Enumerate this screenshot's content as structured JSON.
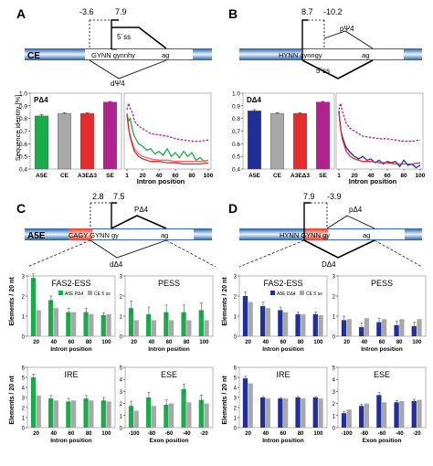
{
  "colors": {
    "green": "#1aab4a",
    "gray": "#a8a8a8",
    "red": "#e62d2d",
    "magenta": "#b0238c",
    "blue": "#1f2f97",
    "pink": "#c43cb0",
    "salmon": "#f26d6d",
    "exon": "#2a78bf"
  },
  "panels": {
    "A": {
      "letter": "A",
      "exon_label": "CE",
      "splice_text": "GYNN gynnhy",
      "ag": "ag",
      "num_left": "-3.6",
      "num_right": "7.9",
      "ss5": "5´ss",
      "dpsi": "dΨ4",
      "bar_title": "PΔ4",
      "ylabel": "Sequence identity [%]",
      "xlabel": "Intron position"
    },
    "B": {
      "letter": "B",
      "splice_text": "HYNN gynngy",
      "ag": "ag",
      "num_left": "8.7",
      "num_right": "-10.2",
      "ppsi": "pΨ4",
      "ss5": "5´ss",
      "bar_title": "DΔ4",
      "xlabel": "Intron position"
    },
    "C": {
      "letter": "C",
      "exon_label": "A5E",
      "splice_text": "CAGY GYNN gy",
      "ag": "ag",
      "num_left": "2.8",
      "num_right": "7.5",
      "pdelta": "PΔ4",
      "ddelta": "dΔ4",
      "ylabel": "Elements / 20 nt"
    },
    "D": {
      "letter": "D",
      "splice_text": "HYNN GYNN gy",
      "ag": "ag",
      "num_left": "7.9",
      "num_right": "-3.9",
      "pdelta": "pΔ4",
      "ddelta": "DΔ4",
      "ylabel": "Elements / 20 nt"
    }
  },
  "chart_data": [
    {
      "id": "A-bar",
      "type": "bar",
      "title": "PΔ4",
      "ylabel": "Sequence identity [%]",
      "categories": [
        "A5E",
        "CE",
        "A3EΔ3",
        "SE"
      ],
      "values": [
        0.82,
        0.84,
        0.84,
        0.93
      ],
      "errors": [
        0.01,
        0.005,
        0.005,
        0.005
      ],
      "colors": [
        "green",
        "gray",
        "red",
        "magenta"
      ],
      "ylim": [
        0.4,
        1.0
      ],
      "yticks": [
        0.4,
        0.5,
        0.6,
        0.7,
        0.8,
        0.9,
        1.0
      ]
    },
    {
      "id": "A-line",
      "type": "line",
      "xlabel": "Intron position",
      "xticks": [
        1,
        20,
        40,
        60,
        80,
        100
      ],
      "ylim": [
        0.4,
        1.0
      ],
      "series": [
        {
          "color": "magenta",
          "dashed": true,
          "x": [
            1,
            3,
            5,
            8,
            10,
            15,
            20,
            25,
            30,
            40,
            50,
            60,
            70,
            80,
            90,
            100
          ],
          "y": [
            0.87,
            0.92,
            0.88,
            0.84,
            0.78,
            0.74,
            0.72,
            0.7,
            0.68,
            0.67,
            0.66,
            0.64,
            0.63,
            0.62,
            0.62,
            0.63
          ]
        },
        {
          "color": "green",
          "dashed": false,
          "x": [
            1,
            3,
            5,
            8,
            10,
            15,
            20,
            25,
            30,
            35,
            40,
            45,
            50,
            55,
            60,
            65,
            70,
            75,
            80,
            85,
            90,
            95,
            100
          ],
          "y": [
            0.84,
            0.78,
            0.8,
            0.7,
            0.66,
            0.6,
            0.58,
            0.55,
            0.56,
            0.52,
            0.54,
            0.51,
            0.56,
            0.5,
            0.53,
            0.49,
            0.54,
            0.5,
            0.53,
            0.47,
            0.49,
            0.46,
            0.47
          ]
        },
        {
          "color": "salmon",
          "dashed": false,
          "x": [
            1,
            3,
            5,
            8,
            10,
            15,
            20,
            25,
            30,
            40,
            50,
            60,
            70,
            80,
            90,
            100
          ],
          "y": [
            0.84,
            0.73,
            0.66,
            0.6,
            0.56,
            0.52,
            0.5,
            0.49,
            0.48,
            0.47,
            0.47,
            0.46,
            0.46,
            0.46,
            0.46,
            0.47
          ]
        },
        {
          "color": "red",
          "dashed": false,
          "x": [
            1,
            3,
            5,
            8,
            10,
            15,
            20,
            25,
            30,
            40,
            50,
            60,
            70,
            80,
            90,
            100
          ],
          "y": [
            0.83,
            0.72,
            0.65,
            0.58,
            0.54,
            0.5,
            0.48,
            0.47,
            0.46,
            0.46,
            0.45,
            0.45,
            0.44,
            0.44,
            0.44,
            0.45
          ]
        }
      ]
    },
    {
      "id": "B-bar",
      "type": "bar",
      "title": "DΔ4",
      "categories": [
        "A5E",
        "CE",
        "A3EΔ3",
        "SE"
      ],
      "values": [
        0.86,
        0.84,
        0.84,
        0.93
      ],
      "errors": [
        0.01,
        0.005,
        0.005,
        0.005
      ],
      "colors": [
        "blue",
        "gray",
        "red",
        "magenta"
      ],
      "ylim": [
        0.4,
        1.0
      ],
      "yticks": [
        0.4,
        0.5,
        0.6,
        0.7,
        0.8,
        0.9,
        1.0
      ]
    },
    {
      "id": "B-line",
      "type": "line",
      "xlabel": "Intron position",
      "xticks": [
        1,
        20,
        40,
        60,
        80,
        100
      ],
      "ylim": [
        0.4,
        1.0
      ],
      "series": [
        {
          "color": "magenta",
          "dashed": true,
          "x": [
            1,
            3,
            5,
            8,
            10,
            15,
            20,
            25,
            30,
            40,
            50,
            60,
            70,
            80,
            90,
            100
          ],
          "y": [
            0.87,
            0.92,
            0.86,
            0.8,
            0.76,
            0.72,
            0.7,
            0.68,
            0.66,
            0.65,
            0.64,
            0.64,
            0.63,
            0.62,
            0.62,
            0.63
          ]
        },
        {
          "color": "blue",
          "dashed": false,
          "x": [
            1,
            3,
            5,
            8,
            10,
            15,
            20,
            25,
            30,
            35,
            40,
            45,
            50,
            55,
            60,
            65,
            70,
            75,
            80,
            85,
            90,
            95,
            100
          ],
          "y": [
            0.86,
            0.72,
            0.66,
            0.6,
            0.57,
            0.53,
            0.5,
            0.48,
            0.5,
            0.47,
            0.48,
            0.45,
            0.47,
            0.44,
            0.46,
            0.45,
            0.46,
            0.42,
            0.47,
            0.43,
            0.44,
            0.41,
            0.43
          ]
        },
        {
          "color": "red",
          "dashed": false,
          "x": [
            1,
            3,
            5,
            8,
            10,
            15,
            20,
            25,
            30,
            40,
            50,
            60,
            70,
            80,
            90,
            100
          ],
          "y": [
            0.84,
            0.72,
            0.64,
            0.58,
            0.54,
            0.5,
            0.48,
            0.47,
            0.46,
            0.46,
            0.45,
            0.45,
            0.44,
            0.44,
            0.44,
            0.45
          ]
        }
      ]
    },
    {
      "id": "C1",
      "type": "bar",
      "title": "FAS2-ESS",
      "legend": [
        "A5E PΔ4",
        "CE 5´ss"
      ],
      "xlabel": "Intron position",
      "categories": [
        "20",
        "40",
        "60",
        "80",
        "100"
      ],
      "series": [
        {
          "color": "green",
          "values": [
            2.9,
            1.8,
            1.2,
            1.2,
            1.05
          ]
        },
        {
          "color": "gray",
          "values": [
            1.3,
            1.4,
            1.2,
            1.1,
            1.1
          ]
        }
      ],
      "errors": [
        0.2,
        0.2,
        0.2,
        0.2,
        0.1
      ],
      "ylim": [
        0,
        3
      ],
      "yticks": [
        0,
        1,
        2,
        3
      ]
    },
    {
      "id": "C2",
      "type": "bar",
      "title": "PESS",
      "xlabel": "Intron position",
      "categories": [
        "20",
        "40",
        "60",
        "80",
        "100"
      ],
      "series": [
        {
          "color": "green",
          "values": [
            1.4,
            1.1,
            1.2,
            1.2,
            1.3
          ]
        },
        {
          "color": "gray",
          "values": [
            0.8,
            0.8,
            0.8,
            0.8,
            0.8
          ]
        }
      ],
      "errors": [
        0.35,
        0.35,
        0.35,
        0.35,
        0.35
      ],
      "ylim": [
        0,
        3
      ],
      "yticks": [
        0,
        1,
        2,
        3
      ]
    },
    {
      "id": "C3",
      "type": "bar",
      "title": "IRE",
      "xlabel": "Intron position",
      "categories": [
        "20",
        "40",
        "60",
        "80",
        "100"
      ],
      "series": [
        {
          "color": "green",
          "values": [
            5.0,
            2.9,
            2.6,
            2.9,
            2.7
          ]
        },
        {
          "color": "gray",
          "values": [
            3.2,
            2.7,
            2.7,
            2.7,
            2.6
          ]
        }
      ],
      "errors": [
        0.3,
        0.3,
        0.3,
        0.3,
        0.3
      ],
      "ylim": [
        0,
        6
      ],
      "yticks": [
        0,
        1,
        2,
        3,
        4,
        5,
        6
      ]
    },
    {
      "id": "C4",
      "type": "bar",
      "title": "ESE",
      "xlabel": "Exon position",
      "categories": [
        "-100",
        "-80",
        "-60",
        "-40",
        "-20"
      ],
      "series": [
        {
          "color": "green",
          "values": [
            1.8,
            2.5,
            1.9,
            3.2,
            2.3
          ]
        },
        {
          "color": "gray",
          "values": [
            1.4,
            1.8,
            2.0,
            2.1,
            2.0
          ]
        }
      ],
      "errors": [
        0.4,
        0.4,
        0.4,
        0.4,
        0.4
      ],
      "ylim": [
        0,
        5
      ],
      "yticks": [
        0,
        1,
        2,
        3,
        4,
        5
      ]
    },
    {
      "id": "D1",
      "type": "bar",
      "title": "FAS2-ESS",
      "legend": [
        "A5E DΔ4",
        "CE 5´ss"
      ],
      "xlabel": "Intron position",
      "categories": [
        "20",
        "40",
        "60",
        "80",
        "100"
      ],
      "series": [
        {
          "color": "blue",
          "values": [
            2.0,
            1.5,
            1.3,
            1.1,
            1.1
          ]
        },
        {
          "color": "gray",
          "values": [
            1.7,
            1.4,
            1.2,
            1.1,
            1.05
          ]
        }
      ],
      "errors": [
        0.2,
        0.2,
        0.15,
        0.1,
        0.1
      ],
      "ylim": [
        0,
        3
      ],
      "yticks": [
        0,
        1,
        2,
        3
      ]
    },
    {
      "id": "D2",
      "type": "bar",
      "title": "PESS",
      "xlabel": "Intron position",
      "categories": [
        "20",
        "40",
        "60",
        "80",
        "100"
      ],
      "series": [
        {
          "color": "blue",
          "values": [
            0.8,
            0.45,
            0.7,
            0.55,
            0.5
          ]
        },
        {
          "color": "gray",
          "values": [
            0.85,
            0.9,
            0.85,
            0.85,
            0.85
          ]
        }
      ],
      "errors": [
        0.2,
        0.2,
        0.2,
        0.2,
        0.2
      ],
      "ylim": [
        0,
        3
      ],
      "yticks": [
        0,
        1,
        2,
        3
      ]
    },
    {
      "id": "D3",
      "type": "bar",
      "title": "IRE",
      "xlabel": "Intron position",
      "categories": [
        "20",
        "40",
        "60",
        "80",
        "100"
      ],
      "series": [
        {
          "color": "blue",
          "values": [
            4.9,
            3.0,
            2.9,
            3.0,
            3.0
          ]
        },
        {
          "color": "gray",
          "values": [
            4.4,
            2.9,
            2.9,
            2.9,
            2.9
          ]
        }
      ],
      "errors": [
        0.2,
        0.1,
        0.1,
        0.1,
        0.1
      ],
      "ylim": [
        0,
        6
      ],
      "yticks": [
        0,
        1,
        2,
        3,
        4,
        5,
        6
      ]
    },
    {
      "id": "D4",
      "type": "bar",
      "title": "ESE",
      "xlabel": "Exon position",
      "categories": [
        "-100",
        "-80",
        "-60",
        "-40",
        "-20"
      ],
      "series": [
        {
          "color": "blue",
          "values": [
            1.2,
            1.8,
            2.7,
            2.1,
            2.2
          ]
        },
        {
          "color": "gray",
          "values": [
            1.5,
            2.0,
            2.1,
            2.2,
            2.3
          ]
        }
      ],
      "errors": [
        0.15,
        0.15,
        0.2,
        0.15,
        0.15
      ],
      "ylim": [
        0,
        5
      ],
      "yticks": [
        0,
        1,
        2,
        3,
        4,
        5
      ]
    }
  ]
}
